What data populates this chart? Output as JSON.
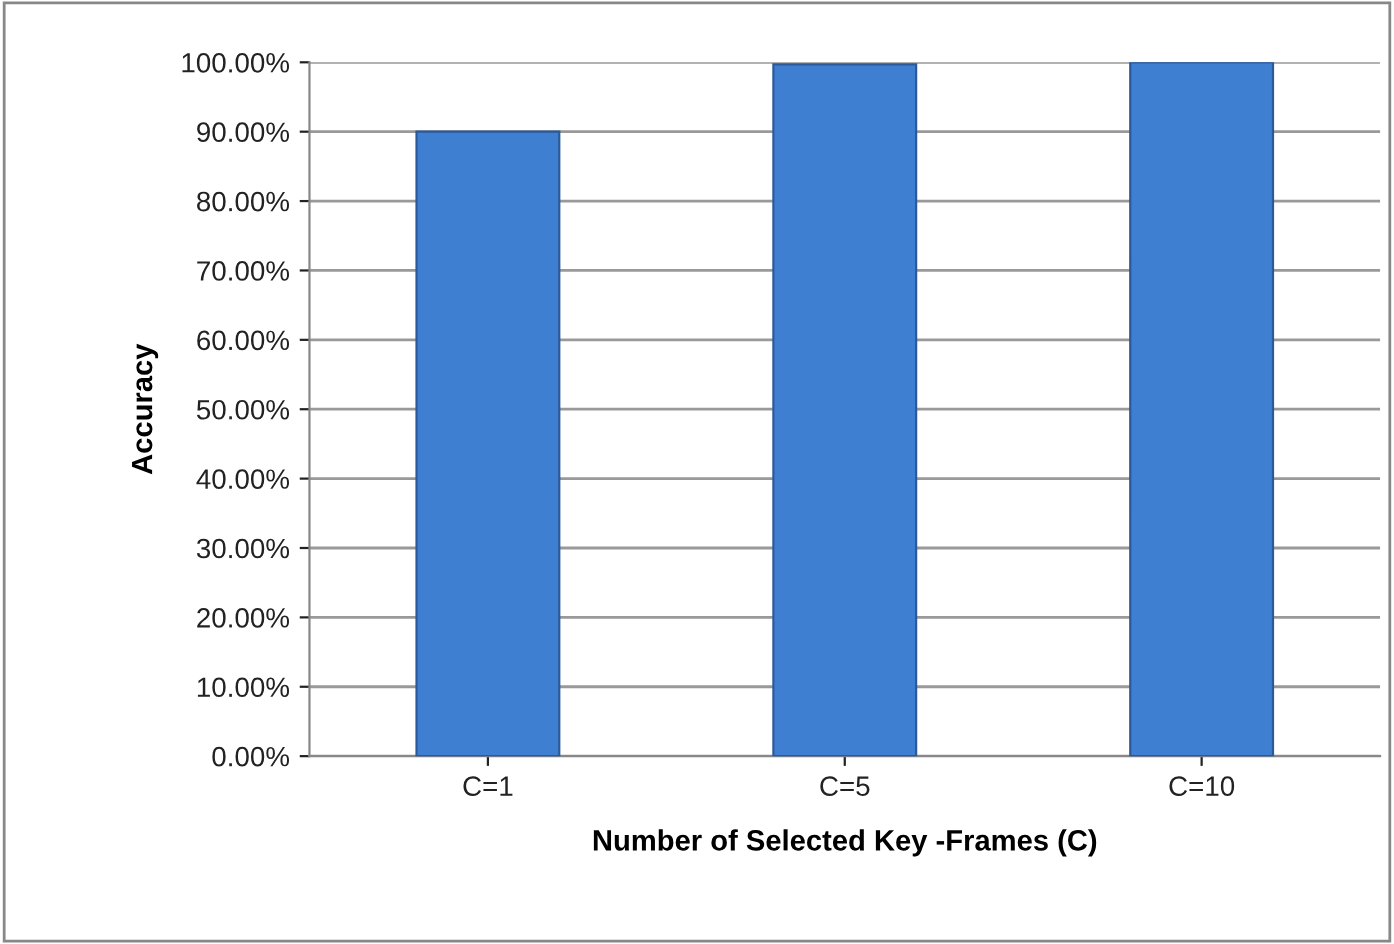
{
  "chart_data": {
    "type": "bar",
    "xlabel": "Number of Selected Key -Frames (C)",
    "ylabel": "Accuracy",
    "categories": [
      "C=1",
      "C=5",
      "C=10"
    ],
    "values": [
      90,
      99.7,
      100
    ],
    "color": "#3f7fd1",
    "ylim": [
      0,
      100
    ],
    "yticks": [
      {
        "value": 0,
        "label": "0.00%"
      },
      {
        "value": 10,
        "label": "10.00%"
      },
      {
        "value": 20,
        "label": "20.00%"
      },
      {
        "value": 30,
        "label": "30.00%"
      },
      {
        "value": 40,
        "label": "40.00%"
      },
      {
        "value": 50,
        "label": "50.00%"
      },
      {
        "value": 60,
        "label": "60.00%"
      },
      {
        "value": 70,
        "label": "70.00%"
      },
      {
        "value": 80,
        "label": "80.00%"
      },
      {
        "value": 90,
        "label": "90.00%"
      },
      {
        "value": 100,
        "label": "100.00%"
      }
    ],
    "grid": "y",
    "legend": false
  }
}
